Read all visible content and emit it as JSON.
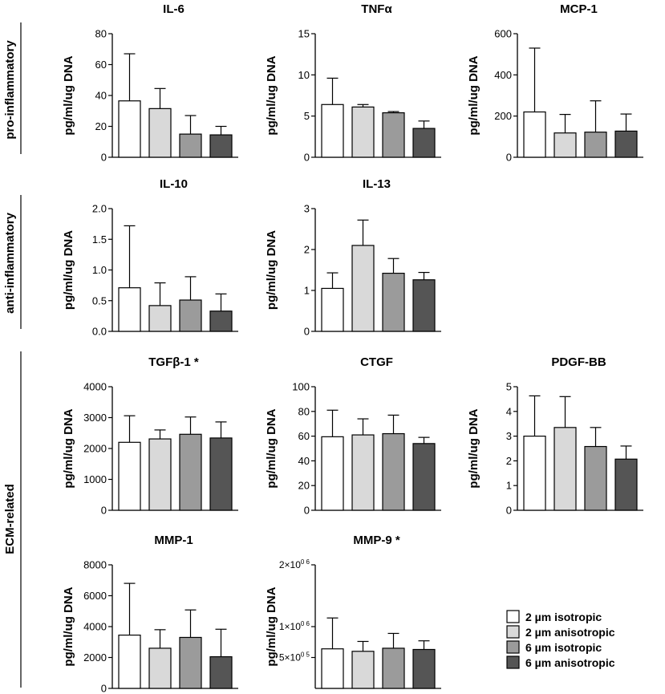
{
  "series_names": [
    "2 µm isotropic",
    "2 µm anisotropic",
    "6 µm isotropic",
    "6 µm anisotropic"
  ],
  "series_colors": [
    "#ffffff",
    "#d9d9d9",
    "#9b9b9b",
    "#555555"
  ],
  "groups": [
    "pro-inflammatory",
    "anti-inflammatory",
    "ECM-related"
  ],
  "chart_data": [
    {
      "type": "bar",
      "title": "IL-6",
      "ylabel": "pg/ml/ug DNA",
      "ylim": [
        0,
        80
      ],
      "ticks": [
        0,
        20,
        40,
        60,
        80
      ],
      "tick_labels": [
        "0",
        "20",
        "40",
        "60",
        "80"
      ],
      "values": [
        36.5,
        31.5,
        15,
        14.5
      ],
      "errors": [
        30.5,
        13,
        12,
        5.5
      ]
    },
    {
      "type": "bar",
      "title": "TNFα",
      "ylabel": "pg/ml/ug DNA",
      "ylim": [
        0,
        15
      ],
      "ticks": [
        0,
        5,
        10,
        15
      ],
      "tick_labels": [
        "0",
        "5",
        "10",
        "15"
      ],
      "values": [
        6.4,
        6.1,
        5.4,
        3.5
      ],
      "errors": [
        3.2,
        0.3,
        0.15,
        0.9
      ]
    },
    {
      "type": "bar",
      "title": "MCP-1",
      "ylabel": "pg/ml/ug DNA",
      "ylim": [
        0,
        600
      ],
      "ticks": [
        0,
        200,
        400,
        600
      ],
      "tick_labels": [
        "0",
        "200",
        "400",
        "600"
      ],
      "values": [
        220,
        118,
        122,
        127
      ],
      "errors": [
        310,
        90,
        152,
        83
      ]
    },
    {
      "type": "bar",
      "title": "IL-10",
      "ylabel": "pg/ml/ug DNA",
      "ylim": [
        0,
        2.0
      ],
      "ticks": [
        0,
        0.5,
        1.0,
        1.5,
        2.0
      ],
      "tick_labels": [
        "0.0",
        "0.5",
        "1.0",
        "1.5",
        "2.0"
      ],
      "values": [
        0.71,
        0.42,
        0.51,
        0.33
      ],
      "errors": [
        1.01,
        0.37,
        0.38,
        0.28
      ]
    },
    {
      "type": "bar",
      "title": "IL-13",
      "ylabel": "pg/ml/ug DNA",
      "ylim": [
        0,
        3
      ],
      "ticks": [
        0,
        1,
        2,
        3
      ],
      "tick_labels": [
        "0",
        "1",
        "2",
        "3"
      ],
      "values": [
        1.05,
        2.1,
        1.42,
        1.26
      ],
      "errors": [
        0.38,
        0.62,
        0.36,
        0.18
      ]
    },
    {
      "type": "bar",
      "title": "TGFβ-1 *",
      "ylabel": "pg/ml/ug DNA",
      "ylim": [
        0,
        4000
      ],
      "ticks": [
        0,
        1000,
        2000,
        3000,
        4000
      ],
      "tick_labels": [
        "0",
        "1000",
        "2000",
        "3000",
        "4000"
      ],
      "values": [
        2200,
        2310,
        2460,
        2340
      ],
      "errors": [
        860,
        290,
        560,
        520
      ]
    },
    {
      "type": "bar",
      "title": "CTGF",
      "ylabel": "pg/ml/ug DNA",
      "ylim": [
        0,
        100
      ],
      "ticks": [
        0,
        20,
        40,
        60,
        80,
        100
      ],
      "tick_labels": [
        "0",
        "20",
        "40",
        "60",
        "80",
        "100"
      ],
      "values": [
        59.5,
        61,
        62,
        54
      ],
      "errors": [
        21.5,
        13,
        15,
        5
      ]
    },
    {
      "type": "bar",
      "title": "PDGF-BB",
      "ylabel": "pg/ml/ug DNA",
      "ylim": [
        0,
        5
      ],
      "ticks": [
        0,
        1,
        2,
        3,
        4,
        5
      ],
      "tick_labels": [
        "0",
        "1",
        "2",
        "3",
        "4",
        "5"
      ],
      "values": [
        3.0,
        3.35,
        2.58,
        2.07
      ],
      "errors": [
        1.63,
        1.25,
        0.77,
        0.53
      ]
    },
    {
      "type": "bar",
      "title": "MMP-1",
      "ylabel": "pg/ml/ug DNA",
      "ylim": [
        0,
        8000
      ],
      "ticks": [
        0,
        2000,
        4000,
        6000,
        8000
      ],
      "tick_labels": [
        "0",
        "2000",
        "4000",
        "6000",
        "8000"
      ],
      "values": [
        3450,
        2600,
        3300,
        2050
      ],
      "errors": [
        3350,
        1200,
        1780,
        1780
      ]
    },
    {
      "type": "bar",
      "title": "MMP-9 *",
      "ylabel": "pg/ml/ug DNA",
      "ylim": [
        0,
        2000000
      ],
      "ticks": [
        500000,
        1000000,
        2000000
      ],
      "tick_labels": [
        [
          "5",
          "×10",
          "0 5"
        ],
        [
          "1",
          "×10",
          "0 6"
        ],
        [
          "2",
          "×10",
          "0 6"
        ]
      ],
      "values": [
        640000,
        600000,
        650000,
        630000
      ],
      "errors": [
        500000,
        160000,
        240000,
        140000
      ]
    }
  ]
}
